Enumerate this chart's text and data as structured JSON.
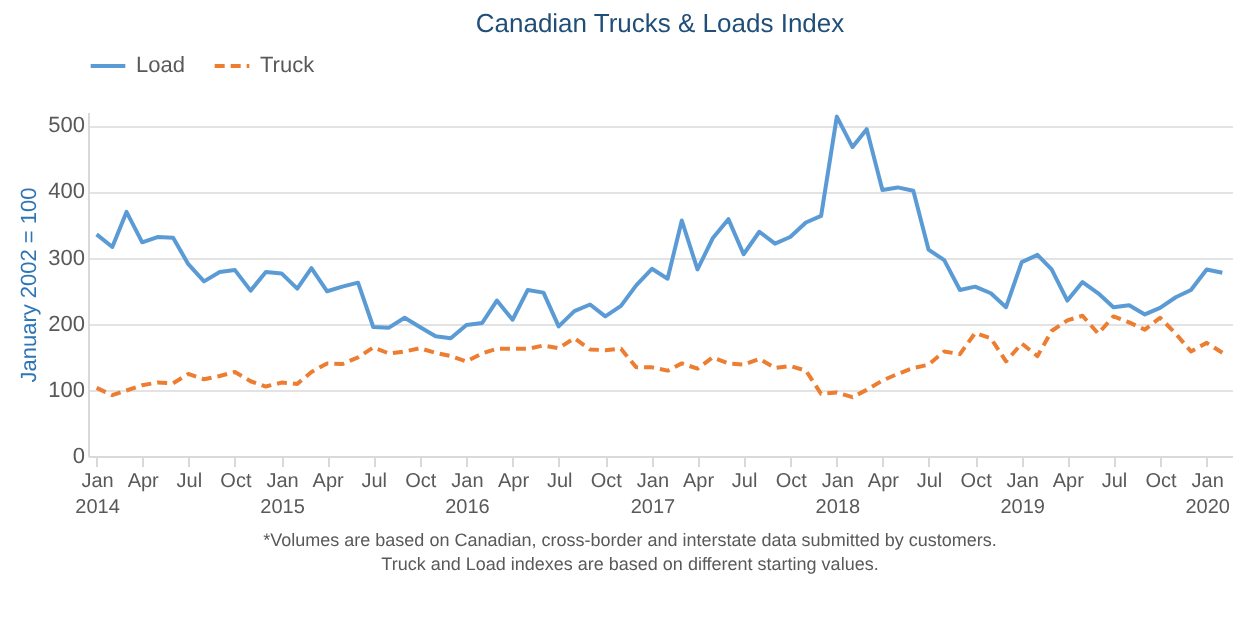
{
  "chart_data": {
    "type": "line",
    "title": "Canadian Trucks & Loads Index",
    "ylabel": "January 2002 = 100",
    "annotations": [
      "*Volumes are based on Canadian, cross-border and interstate data submitted by customers.",
      "Truck and Load indexes are based on different starting values."
    ],
    "x": [
      "2014-01",
      "2014-02",
      "2014-03",
      "2014-04",
      "2014-05",
      "2014-06",
      "2014-07",
      "2014-08",
      "2014-09",
      "2014-10",
      "2014-11",
      "2014-12",
      "2015-01",
      "2015-02",
      "2015-03",
      "2015-04",
      "2015-05",
      "2015-06",
      "2015-07",
      "2015-08",
      "2015-09",
      "2015-10",
      "2015-11",
      "2015-12",
      "2016-01",
      "2016-02",
      "2016-03",
      "2016-04",
      "2016-05",
      "2016-06",
      "2016-07",
      "2016-08",
      "2016-09",
      "2016-10",
      "2016-11",
      "2016-12",
      "2017-01",
      "2017-02",
      "2017-03",
      "2017-04",
      "2017-05",
      "2017-06",
      "2017-07",
      "2017-08",
      "2017-09",
      "2017-10",
      "2017-11",
      "2017-12",
      "2018-01",
      "2018-02",
      "2018-03",
      "2018-04",
      "2018-05",
      "2018-06",
      "2018-07",
      "2018-08",
      "2018-09",
      "2018-10",
      "2018-11",
      "2018-12",
      "2019-01",
      "2019-02",
      "2019-03",
      "2019-04",
      "2019-05",
      "2019-06",
      "2019-07",
      "2019-08",
      "2019-09",
      "2019-10",
      "2019-11",
      "2019-12",
      "2020-01",
      "2020-02"
    ],
    "series": [
      {
        "name": "Load",
        "color": "#5b9bd5",
        "line_style": "solid",
        "values": [
          335,
          316,
          369,
          323,
          331,
          330,
          290,
          264,
          278,
          281,
          250,
          278,
          276,
          253,
          284,
          249,
          256,
          262,
          195,
          194,
          209,
          195,
          181,
          178,
          198,
          201,
          235,
          206,
          251,
          247,
          196,
          219,
          229,
          211,
          227,
          258,
          283,
          268,
          356,
          282,
          329,
          358,
          305,
          339,
          321,
          331,
          353,
          363,
          513,
          467,
          494,
          402,
          406,
          401,
          312,
          296,
          251,
          256,
          246,
          225,
          293,
          304,
          282,
          235,
          263,
          246,
          225,
          228,
          214,
          224,
          240,
          251,
          282,
          277
        ]
      },
      {
        "name": "Truck",
        "color": "#ed7d31",
        "line_style": "dashed",
        "values": [
          103,
          92,
          99,
          107,
          111,
          110,
          124,
          116,
          121,
          127,
          113,
          105,
          111,
          109,
          127,
          140,
          139,
          149,
          164,
          155,
          158,
          163,
          156,
          151,
          143,
          155,
          162,
          162,
          162,
          167,
          163,
          178,
          161,
          160,
          162,
          134,
          134,
          129,
          140,
          132,
          149,
          140,
          138,
          147,
          133,
          136,
          129,
          94,
          96,
          89,
          100,
          114,
          124,
          133,
          138,
          158,
          154,
          186,
          178,
          143,
          170,
          151,
          189,
          205,
          212,
          185,
          211,
          202,
          191,
          209,
          185,
          158,
          171,
          156
        ]
      }
    ],
    "xlim": [
      "2013-12-15",
      "2020-02-20"
    ],
    "xticks": [
      {
        "value": "2014-01",
        "label": "Jan 2014"
      },
      {
        "value": "2014-04",
        "label": "Apr"
      },
      {
        "value": "2014-07",
        "label": "Jul"
      },
      {
        "value": "2014-10",
        "label": "Oct"
      },
      {
        "value": "2015-01",
        "label": "Jan 2015"
      },
      {
        "value": "2015-04",
        "label": "Apr"
      },
      {
        "value": "2015-07",
        "label": "Jul"
      },
      {
        "value": "2015-10",
        "label": "Oct"
      },
      {
        "value": "2016-01",
        "label": "Jan 2016"
      },
      {
        "value": "2016-04",
        "label": "Apr"
      },
      {
        "value": "2016-07",
        "label": "Jul"
      },
      {
        "value": "2016-10",
        "label": "Oct"
      },
      {
        "value": "2017-01",
        "label": "Jan 2017"
      },
      {
        "value": "2017-04",
        "label": "Apr"
      },
      {
        "value": "2017-07",
        "label": "Jul"
      },
      {
        "value": "2017-10",
        "label": "Oct"
      },
      {
        "value": "2018-01",
        "label": "Jan 2018"
      },
      {
        "value": "2018-04",
        "label": "Apr"
      },
      {
        "value": "2018-07",
        "label": "Jul"
      },
      {
        "value": "2018-10",
        "label": "Oct"
      },
      {
        "value": "2019-01",
        "label": "Jan 2019"
      },
      {
        "value": "2019-04",
        "label": "Apr"
      },
      {
        "value": "2019-07",
        "label": "Jul"
      },
      {
        "value": "2019-10",
        "label": "Oct"
      },
      {
        "value": "2020-01",
        "label": "Jan 2020"
      }
    ],
    "ylim": [
      0,
      520
    ],
    "yticks": [
      0,
      100,
      200,
      300,
      400,
      500
    ],
    "grid": "y",
    "legend": "top"
  }
}
